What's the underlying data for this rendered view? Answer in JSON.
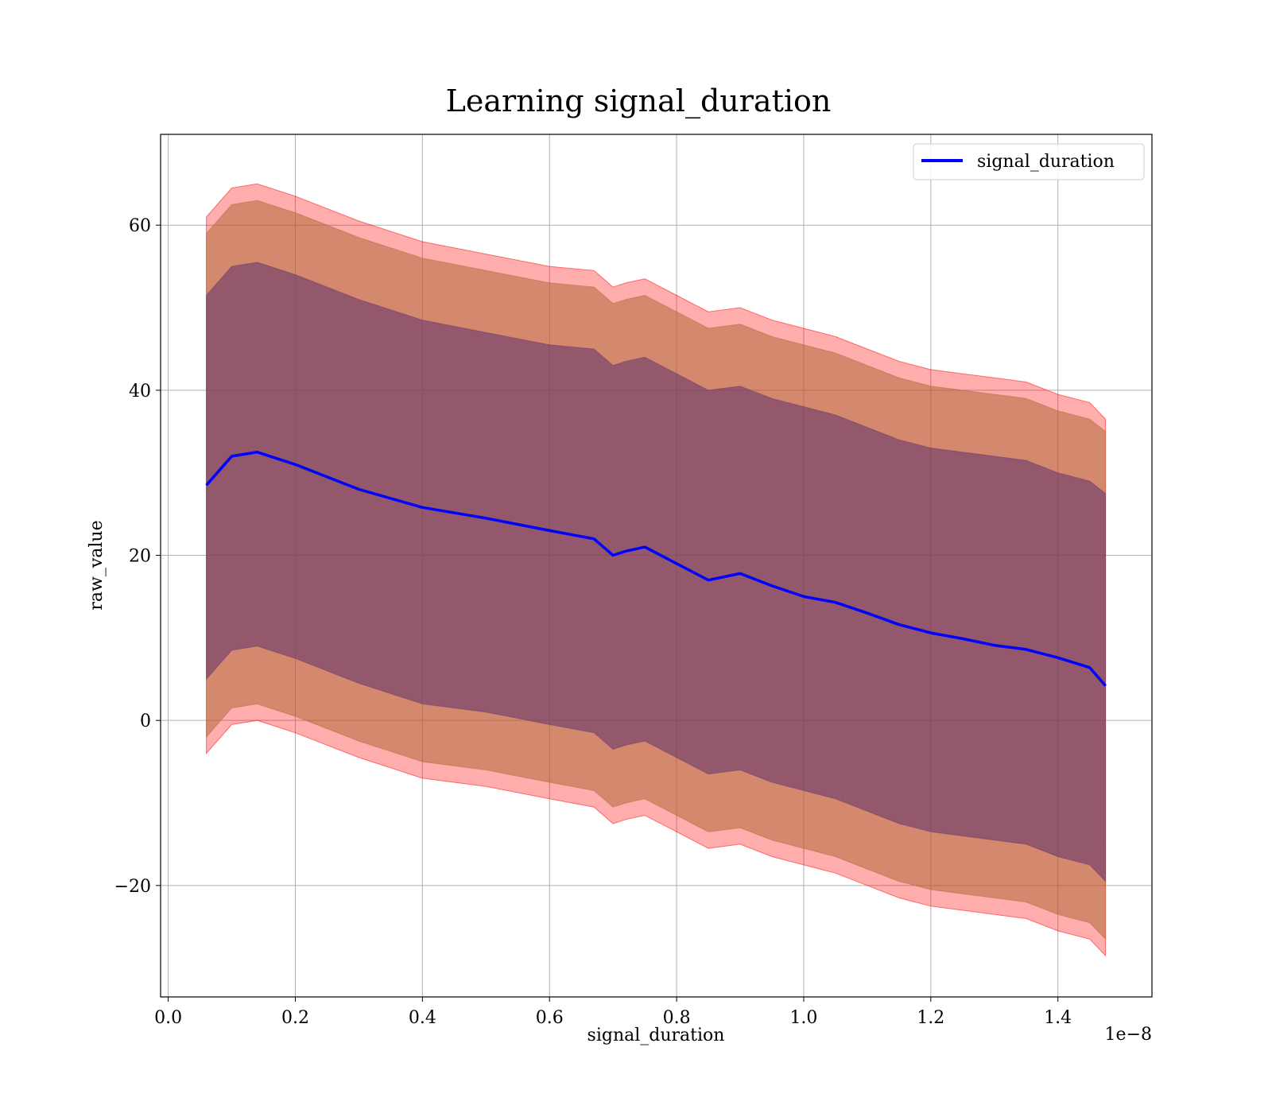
{
  "chart_data": {
    "type": "line",
    "title": "Learning signal_duration",
    "xlabel": "signal_duration",
    "ylabel": "raw_value",
    "x_offset_text": "1e−8",
    "xlim": [
      -0.012,
      1.548
    ],
    "ylim": [
      -33.5,
      71
    ],
    "x_ticks": [
      0.0,
      0.2,
      0.4,
      0.6,
      0.8,
      1.0,
      1.2,
      1.4
    ],
    "x_tick_labels": [
      "0.0",
      "0.2",
      "0.4",
      "0.6",
      "0.8",
      "1.0",
      "1.2",
      "1.4"
    ],
    "y_ticks": [
      -20,
      0,
      20,
      40,
      60
    ],
    "y_tick_labels": [
      "−20",
      "0",
      "20",
      "40",
      "60"
    ],
    "grid": true,
    "legend_position": "upper right",
    "colors": {
      "line": "#0000ff",
      "band_outer": "#ff0000",
      "band_middle": "#b06a3a",
      "band_inner": "#6b3a6b",
      "grid": "#b0b0b0"
    },
    "x": [
      0.06,
      0.1,
      0.14,
      0.2,
      0.3,
      0.4,
      0.5,
      0.6,
      0.67,
      0.7,
      0.72,
      0.75,
      0.8,
      0.85,
      0.9,
      0.95,
      1.0,
      1.05,
      1.1,
      1.15,
      1.2,
      1.25,
      1.3,
      1.35,
      1.4,
      1.45,
      1.475
    ],
    "series": [
      {
        "name": "signal_duration",
        "values": [
          28.5,
          32.0,
          32.5,
          31.0,
          28.0,
          25.8,
          24.5,
          23.0,
          22.0,
          20.0,
          20.5,
          21.0,
          19.0,
          17.0,
          17.8,
          16.3,
          15.0,
          14.3,
          13.0,
          11.6,
          10.6,
          9.9,
          9.1,
          8.6,
          7.6,
          6.4,
          4.2
        ]
      }
    ],
    "bands": [
      {
        "level": "outer",
        "upper": [
          61.0,
          64.5,
          65.0,
          63.5,
          60.5,
          58.0,
          56.5,
          55.0,
          54.5,
          52.5,
          53.0,
          53.5,
          51.5,
          49.5,
          50.0,
          48.5,
          47.5,
          46.5,
          45.0,
          43.5,
          42.5,
          42.0,
          41.5,
          41.0,
          39.5,
          38.5,
          36.5
        ],
        "lower": [
          -4.0,
          -0.5,
          0.0,
          -1.5,
          -4.5,
          -7.0,
          -8.0,
          -9.5,
          -10.5,
          -12.5,
          -12.0,
          -11.5,
          -13.5,
          -15.5,
          -15.0,
          -16.5,
          -17.5,
          -18.5,
          -20.0,
          -21.5,
          -22.5,
          -23.0,
          -23.5,
          -24.0,
          -25.5,
          -26.5,
          -28.5
        ]
      },
      {
        "level": "middle",
        "upper": [
          59.0,
          62.5,
          63.0,
          61.5,
          58.5,
          56.0,
          54.5,
          53.0,
          52.5,
          50.5,
          51.0,
          51.5,
          49.5,
          47.5,
          48.0,
          46.5,
          45.5,
          44.5,
          43.0,
          41.5,
          40.5,
          40.0,
          39.5,
          39.0,
          37.5,
          36.5,
          35.0
        ],
        "lower": [
          -2.0,
          1.5,
          2.0,
          0.5,
          -2.5,
          -5.0,
          -6.0,
          -7.5,
          -8.5,
          -10.5,
          -10.0,
          -9.5,
          -11.5,
          -13.5,
          -13.0,
          -14.5,
          -15.5,
          -16.5,
          -18.0,
          -19.5,
          -20.5,
          -21.0,
          -21.5,
          -22.0,
          -23.5,
          -24.5,
          -26.5
        ]
      },
      {
        "level": "inner",
        "upper": [
          51.5,
          55.0,
          55.5,
          54.0,
          51.0,
          48.5,
          47.0,
          45.5,
          45.0,
          43.0,
          43.5,
          44.0,
          42.0,
          40.0,
          40.5,
          39.0,
          38.0,
          37.0,
          35.5,
          34.0,
          33.0,
          32.5,
          32.0,
          31.5,
          30.0,
          29.0,
          27.5
        ],
        "lower": [
          5.0,
          8.5,
          9.0,
          7.5,
          4.5,
          2.0,
          1.0,
          -0.5,
          -1.5,
          -3.5,
          -3.0,
          -2.5,
          -4.5,
          -6.5,
          -6.0,
          -7.5,
          -8.5,
          -9.5,
          -11.0,
          -12.5,
          -13.5,
          -14.0,
          -14.5,
          -15.0,
          -16.5,
          -17.5,
          -19.5
        ]
      }
    ]
  }
}
